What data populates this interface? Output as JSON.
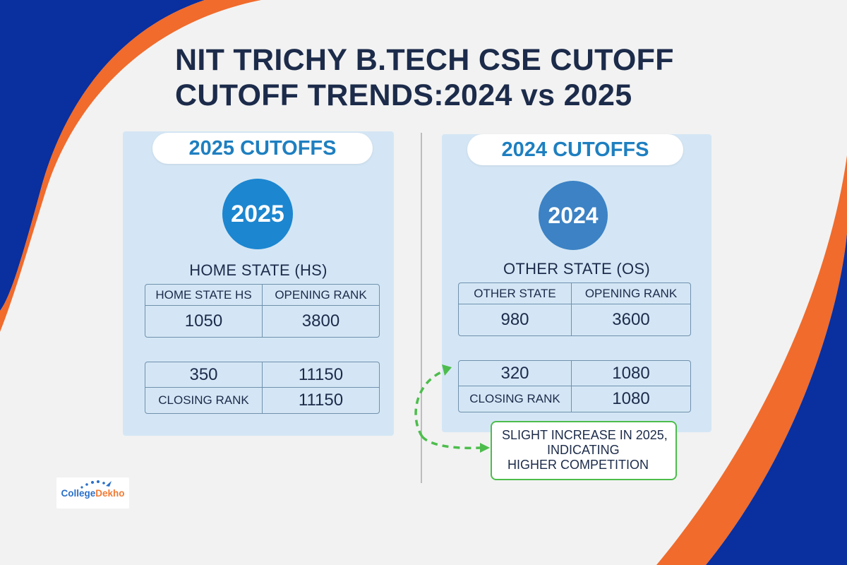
{
  "title": {
    "line1": "NIT TRICHY B.TECH CSE CUTOFF",
    "line2": "CUTOFF TRENDS:2024 vs 2025"
  },
  "panel_2025": {
    "pill": "2025 CUTOFFS",
    "year": "2025",
    "section": "HOME STATE (HS)",
    "table": {
      "headers": [
        "HOME STATE HS",
        "OPENING RANK"
      ],
      "values": [
        "1050",
        "3800"
      ]
    },
    "closing": {
      "row1": [
        "350",
        "11150"
      ],
      "row2": [
        "CLOSING RANK",
        "11150"
      ]
    }
  },
  "panel_2024": {
    "pill": "2024 CUTOFFS",
    "year": "2024",
    "section": "OTHER STATE (OS)",
    "table": {
      "headers": [
        "OTHER STATE",
        "OPENING RANK"
      ],
      "values": [
        "980",
        "3600"
      ]
    },
    "closing": {
      "row1": [
        "320",
        "1080"
      ],
      "row2": [
        "CLOSING RANK",
        "1080"
      ]
    }
  },
  "callout": {
    "line1": "SLIGHT INCREASE IN 2025,",
    "line2": "INDICATING",
    "line3": "HIGHER COMPETITION"
  },
  "logo": {
    "part1": "College",
    "part2": "Dekho"
  },
  "colors": {
    "navy": "#0a2f9e",
    "orange": "#f06b2c",
    "panel": "#d4e6f5",
    "heading": "#1c2b4a",
    "accent_blue": "#1e7fc0",
    "green": "#4cbd4c"
  }
}
